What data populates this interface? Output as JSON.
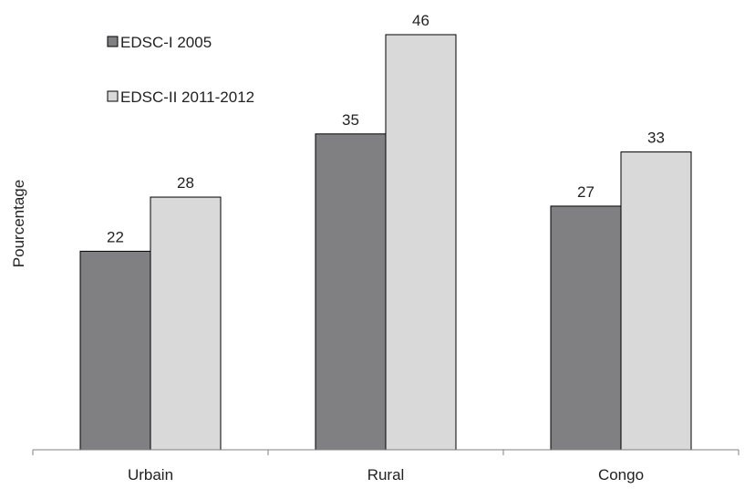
{
  "chart_data": {
    "type": "bar",
    "categories": [
      "Urbain",
      "Rural",
      "Congo"
    ],
    "series": [
      {
        "name": "EDSC-I 2005",
        "values": [
          22,
          35,
          27
        ],
        "color": "#808083"
      },
      {
        "name": "EDSC-II 2011-2012",
        "values": [
          28,
          46,
          33
        ],
        "color": "#d9d9da"
      }
    ],
    "ylabel": "Pourcentage",
    "xlabel": "",
    "title": "",
    "ylim": [
      0,
      50
    ],
    "grid": false,
    "show_y_axis": false,
    "legend_position": "top-left",
    "data_labels": true
  }
}
